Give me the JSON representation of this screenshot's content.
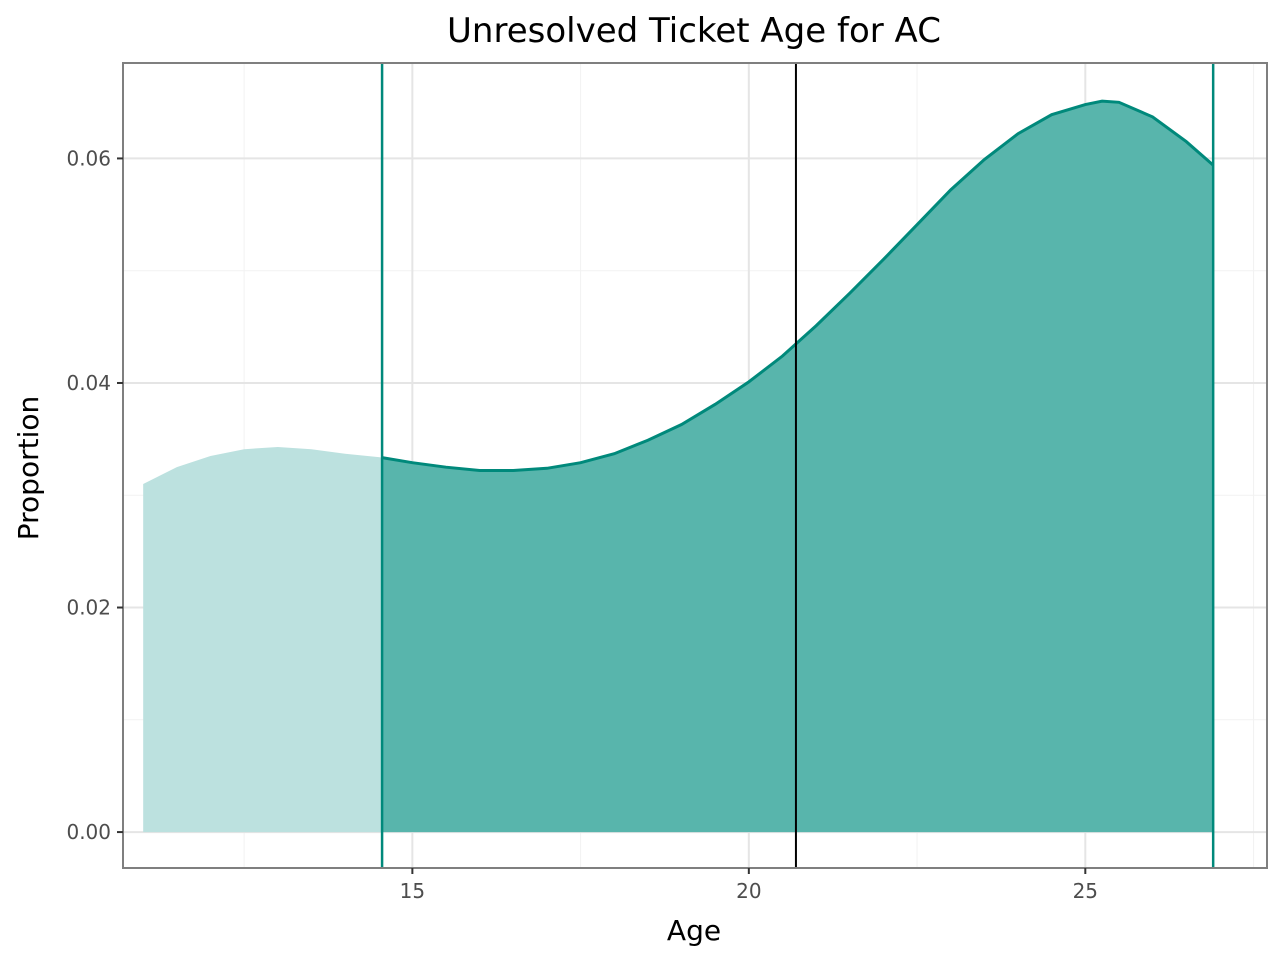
{
  "chart_data": {
    "type": "area",
    "title": "Unresolved Ticket Age for AC",
    "xlabel": "Age",
    "ylabel": "Proportion",
    "xlim": [
      10.7,
      27.7
    ],
    "ylim": [
      -0.0032,
      0.0685
    ],
    "x_ticks": [
      15,
      20,
      25
    ],
    "x_tick_labels": [
      "15",
      "20",
      "25"
    ],
    "y_ticks": [
      0.0,
      0.02,
      0.04,
      0.06
    ],
    "y_tick_labels": [
      "0.00",
      "0.02",
      "0.04",
      "0.06"
    ],
    "grid": true,
    "legend": "none",
    "density": {
      "x": [
        11.0,
        11.5,
        12.0,
        12.5,
        13.0,
        13.5,
        14.0,
        14.5,
        15.0,
        15.5,
        16.0,
        16.5,
        17.0,
        17.5,
        18.0,
        18.5,
        19.0,
        19.5,
        20.0,
        20.5,
        21.0,
        21.5,
        22.0,
        22.5,
        23.0,
        23.5,
        24.0,
        24.5,
        25.0,
        25.25,
        25.5,
        26.0,
        26.5,
        26.9
      ],
      "y": [
        0.031,
        0.0325,
        0.0335,
        0.0341,
        0.0343,
        0.0341,
        0.0337,
        0.0334,
        0.0329,
        0.0325,
        0.0322,
        0.0322,
        0.0324,
        0.0329,
        0.0337,
        0.0349,
        0.0363,
        0.0381,
        0.0401,
        0.0424,
        0.0451,
        0.048,
        0.051,
        0.0541,
        0.0572,
        0.0599,
        0.0622,
        0.0639,
        0.0648,
        0.0651,
        0.065,
        0.0637,
        0.0615,
        0.0594
      ]
    },
    "interval": {
      "lower": 14.55,
      "upper": 26.9
    },
    "center_line": 20.7,
    "colors": {
      "line": "#00897b",
      "fill_inner": "#58b5ac",
      "fill_outer": "#bce1df",
      "center_line": "#000000",
      "grid_major": "#e5e5e5",
      "grid_minor": "#f2f2f2",
      "panel_border": "#7f7f7f"
    }
  }
}
